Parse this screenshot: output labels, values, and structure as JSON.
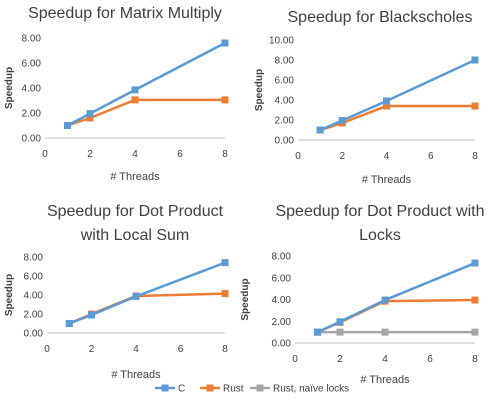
{
  "colors": {
    "C": "#5B9BD5",
    "Rust": "#ED7D31",
    "Rust, naïve locks": "#A5A5A5",
    "text": "#404040",
    "axis": "#BFBFBF"
  },
  "legend": [
    {
      "name": "C",
      "color": "#5B9BD5"
    },
    {
      "name": "Rust",
      "color": "#ED7D31"
    },
    {
      "name": "Rust, naïve locks",
      "color": "#A5A5A5"
    }
  ],
  "chart_data": [
    {
      "type": "line",
      "title": [
        "Speedup for Matrix Multiply"
      ],
      "xlabel": "# Threads",
      "ylabel": "Speedup",
      "xticks": [
        "0",
        "2",
        "4",
        "6",
        "8"
      ],
      "yticks": [
        "0.00",
        "2.00",
        "4.00",
        "6.00",
        "8.00"
      ],
      "xlim": [
        0,
        8
      ],
      "ylim": [
        0,
        8
      ],
      "x": [
        1,
        2,
        4,
        8
      ],
      "series": [
        {
          "name": "C",
          "values": [
            1.0,
            1.95,
            3.85,
            7.6
          ]
        },
        {
          "name": "Rust",
          "values": [
            1.0,
            1.6,
            3.05,
            3.05
          ]
        }
      ]
    },
    {
      "type": "line",
      "title": [
        "Speedup for Blackscholes"
      ],
      "xlabel": "# Threads",
      "ylabel": "Speedup",
      "xticks": [
        "0",
        "2",
        "4",
        "6",
        "8"
      ],
      "yticks": [
        "0.00",
        "2.00",
        "4.00",
        "6.00",
        "8.00",
        "10.00"
      ],
      "xlim": [
        0,
        8
      ],
      "ylim": [
        0,
        10
      ],
      "x": [
        1,
        2,
        4,
        8
      ],
      "series": [
        {
          "name": "C",
          "values": [
            1.0,
            1.95,
            3.9,
            8.0
          ]
        },
        {
          "name": "Rust",
          "values": [
            1.0,
            1.7,
            3.4,
            3.4
          ]
        }
      ]
    },
    {
      "type": "line",
      "title": [
        "Speedup for Dot Product",
        "with Local Sum"
      ],
      "xlabel": "# Threads",
      "ylabel": "Speedup",
      "xticks": [
        "0",
        "2",
        "4",
        "6",
        "8"
      ],
      "yticks": [
        "0.00",
        "2.00",
        "4.00",
        "6.00",
        "8.00"
      ],
      "xlim": [
        0,
        8
      ],
      "ylim": [
        0,
        8
      ],
      "x": [
        1,
        2,
        4,
        8
      ],
      "series": [
        {
          "name": "C",
          "values": [
            1.0,
            1.9,
            3.85,
            7.4
          ]
        },
        {
          "name": "Rust",
          "values": [
            1.0,
            2.0,
            3.9,
            4.15
          ]
        }
      ]
    },
    {
      "type": "line",
      "title": [
        "Speedup for Dot Product with",
        "Locks"
      ],
      "xlabel": "# Threads",
      "ylabel": "Speedup",
      "xticks": [
        "0",
        "2",
        "4",
        "6",
        "8"
      ],
      "yticks": [
        "0.00",
        "2.00",
        "4.00",
        "6.00",
        "8.00"
      ],
      "xlim": [
        0,
        8
      ],
      "ylim": [
        0,
        8
      ],
      "x": [
        1,
        2,
        4,
        8
      ],
      "series": [
        {
          "name": "C",
          "values": [
            1.0,
            1.95,
            3.95,
            7.35
          ]
        },
        {
          "name": "Rust",
          "values": [
            1.0,
            1.9,
            3.85,
            3.95
          ]
        },
        {
          "name": "Rust, naïve locks",
          "values": [
            1.0,
            1.0,
            1.0,
            1.0
          ]
        }
      ]
    }
  ]
}
